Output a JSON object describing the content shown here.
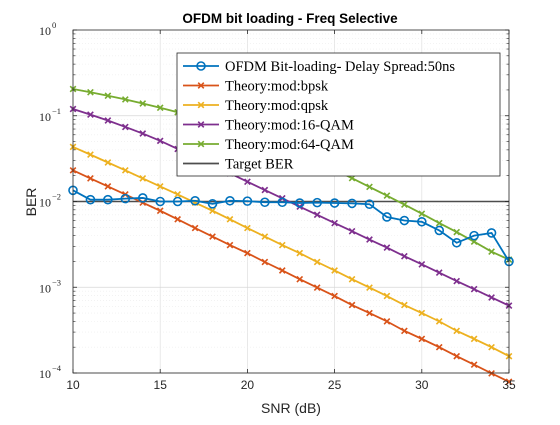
{
  "chart_data": {
    "type": "line",
    "title": "OFDM bit loading -  Freq Selective",
    "xlabel": "SNR (dB)",
    "ylabel": "BER",
    "xlim": [
      10,
      35
    ],
    "ylim": [
      0.0001,
      1
    ],
    "yscale": "log",
    "grid": true,
    "legend_position": "top-right",
    "x_ticks": [
      10,
      15,
      20,
      25,
      30,
      35
    ],
    "y_ticks": [
      {
        "value": 1,
        "base": "10",
        "exp": "0"
      },
      {
        "value": 0.1,
        "base": "10",
        "exp": "−1"
      },
      {
        "value": 0.01,
        "base": "10",
        "exp": "−2"
      },
      {
        "value": 0.001,
        "base": "10",
        "exp": "−3"
      },
      {
        "value": 0.0001,
        "base": "10",
        "exp": "−4"
      }
    ],
    "series": [
      {
        "name": "OFDM Bit-loading- Delay Spread:50ns",
        "color": "#0072BD",
        "marker": "circle",
        "x": [
          10,
          11,
          12,
          13,
          14,
          15,
          16,
          17,
          18,
          19,
          20,
          21,
          22,
          23,
          24,
          25,
          26,
          27,
          28,
          29,
          30,
          31,
          32,
          33,
          34,
          35
        ],
        "y": [
          0.0135,
          0.0105,
          0.0105,
          0.0108,
          0.011,
          0.01,
          0.01,
          0.0102,
          0.0094,
          0.0102,
          0.0101,
          0.0098,
          0.0098,
          0.0096,
          0.0097,
          0.0096,
          0.0095,
          0.0093,
          0.0066,
          0.006,
          0.0058,
          0.0046,
          0.0033,
          0.004,
          0.0043,
          0.002
        ]
      },
      {
        "name": "Theory:mod:bpsk",
        "color": "#D95319",
        "marker": "x",
        "x": [
          10,
          11,
          12,
          13,
          14,
          15,
          16,
          17,
          18,
          19,
          20,
          21,
          22,
          23,
          24,
          25,
          26,
          27,
          28,
          29,
          30,
          31,
          32,
          33,
          34,
          35
        ],
        "y": [
          0.0231,
          0.0186,
          0.015,
          0.0121,
          0.0097,
          0.0078,
          0.0062,
          0.0049,
          0.0039,
          0.0031,
          0.0025,
          0.00197,
          0.00157,
          0.00124,
          0.00099,
          0.00079,
          0.00062,
          0.0005,
          0.0004,
          0.00031,
          0.00025,
          0.0002,
          0.000157,
          0.000125,
          9.9e-05,
          7.9e-05
        ]
      },
      {
        "name": "Theory:mod:qpsk",
        "color": "#EDB120",
        "marker": "x",
        "x": [
          10,
          11,
          12,
          13,
          14,
          15,
          16,
          17,
          18,
          19,
          20,
          21,
          22,
          23,
          24,
          25,
          26,
          27,
          28,
          29,
          30,
          31,
          32,
          33,
          34,
          35
        ],
        "y": [
          0.0433,
          0.0352,
          0.0285,
          0.0231,
          0.0186,
          0.015,
          0.0121,
          0.0097,
          0.0078,
          0.0062,
          0.0049,
          0.0039,
          0.0031,
          0.0025,
          0.00197,
          0.00157,
          0.00124,
          0.00099,
          0.00079,
          0.00062,
          0.0005,
          0.0004,
          0.00031,
          0.00025,
          0.0002,
          0.000157
        ]
      },
      {
        "name": "Theory:mod:16-QAM",
        "color": "#7E2F8E",
        "marker": "x",
        "x": [
          10,
          11,
          12,
          13,
          14,
          15,
          16,
          17,
          18,
          19,
          20,
          21,
          22,
          23,
          24,
          25,
          26,
          27,
          28,
          29,
          30,
          31,
          32,
          33,
          34,
          35
        ],
        "y": [
          0.12,
          0.103,
          0.088,
          0.074,
          0.062,
          0.051,
          0.041,
          0.033,
          0.026,
          0.0213,
          0.017,
          0.0136,
          0.0109,
          0.0087,
          0.007,
          0.0056,
          0.0045,
          0.0036,
          0.0029,
          0.0023,
          0.00185,
          0.00148,
          0.00118,
          0.00095,
          0.00076,
          0.00061
        ]
      },
      {
        "name": "Theory:mod:64-QAM",
        "color": "#77AC30",
        "marker": "x",
        "x": [
          10,
          11,
          12,
          13,
          14,
          15,
          16,
          17,
          18,
          19,
          20,
          21,
          22,
          23,
          24,
          25,
          26,
          27,
          28,
          29,
          30,
          31,
          32,
          33,
          34,
          35
        ],
        "y": [
          0.205,
          0.188,
          0.171,
          0.155,
          0.139,
          0.124,
          0.11,
          0.097,
          0.084,
          0.072,
          0.062,
          0.052,
          0.043,
          0.0355,
          0.029,
          0.0234,
          0.0187,
          0.0148,
          0.0117,
          0.0092,
          0.0072,
          0.0056,
          0.0044,
          0.0034,
          0.0026,
          0.0021
        ]
      },
      {
        "name": "Target BER",
        "color": "#4D4D4D",
        "marker": "none",
        "x": [
          10,
          35
        ],
        "y": [
          0.01,
          0.01
        ]
      }
    ]
  }
}
